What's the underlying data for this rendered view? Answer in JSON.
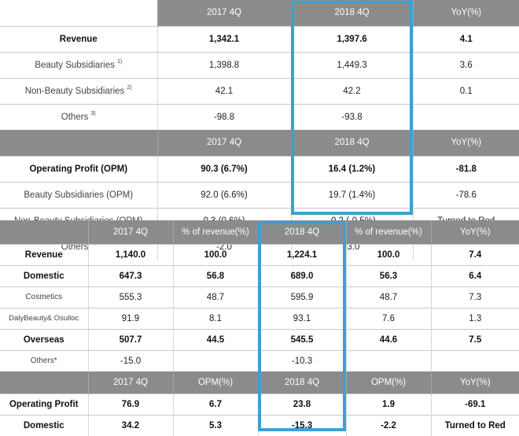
{
  "table1": {
    "header1": [
      "2017 4Q",
      "2018 4Q",
      "YoY(%)"
    ],
    "rows1": [
      {
        "label": "Revenue",
        "sup": "",
        "v2017": "1,342.1",
        "v2018": "1,397.6",
        "yoy": "4.1"
      },
      {
        "label": "Beauty Subsidiaries",
        "sup": "1)",
        "v2017": "1,398.8",
        "v2018": "1,449.3",
        "yoy": "3.6"
      },
      {
        "label": "Non-Beauty Subsidiaries",
        "sup": "2)",
        "v2017": "42.1",
        "v2018": "42.2",
        "yoy": "0.1"
      },
      {
        "label": "Others",
        "sup": "3)",
        "v2017": "-98.8",
        "v2018": "-93.8",
        "yoy": ""
      }
    ],
    "header2": [
      "2017 4Q",
      "2018 4Q",
      "YoY(%)"
    ],
    "rows2": [
      {
        "label": "Operating Profit (OPM)",
        "sup": "",
        "v2017": "90.3 (6.7%)",
        "v2018": "16.4 (1.2%)",
        "yoy": "-81.8"
      },
      {
        "label": "Beauty Subsidiaries (OPM)",
        "sup": "",
        "v2017": "92.0 (6.6%)",
        "v2018": "19.7 (1.4%)",
        "yoy": "-78.6"
      },
      {
        "label": "Non-Beauty Subsidiaries (OPM)",
        "sup": "",
        "v2017": "0.3 (0.6%)",
        "v2018": "-0.2 (-0.5%)",
        "yoy": "Turned to Red"
      },
      {
        "label": "Others",
        "sup": "3)",
        "v2017": "-2.0",
        "v2018": "-3.0",
        "yoy": ""
      }
    ]
  },
  "table2": {
    "header1": [
      "2017 4Q",
      "% of revenue(%)",
      "2018 4Q",
      "% of revenue(%)",
      "YoY(%)"
    ],
    "rows1": [
      {
        "label": "Revenue",
        "v2017": "1,140.0",
        "p2017": "100.0",
        "v2018": "1,224.1",
        "p2018": "100.0",
        "yoy": "7.4"
      },
      {
        "label": "Domestic",
        "v2017": "647.3",
        "p2017": "56.8",
        "v2018": "689.0",
        "p2018": "56.3",
        "yoy": "6.4"
      },
      {
        "label": "Cosmetics",
        "v2017": "555.3",
        "p2017": "48.7",
        "v2018": "595.9",
        "p2018": "48.7",
        "yoy": "7.3"
      },
      {
        "label": "DalyBeauty& Osulloc",
        "v2017": "91.9",
        "p2017": "8.1",
        "v2018": "93.1",
        "p2018": "7.6",
        "yoy": "1.3"
      },
      {
        "label": "Overseas",
        "v2017": "507.7",
        "p2017": "44.5",
        "v2018": "545.5",
        "p2018": "44.6",
        "yoy": "7.5"
      },
      {
        "label": "Others*",
        "v2017": "-15.0",
        "p2017": "",
        "v2018": "-10.3",
        "p2018": "",
        "yoy": ""
      }
    ],
    "header2": [
      "2017 4Q",
      "OPM(%)",
      "2018 4Q",
      "OPM(%)",
      "YoY(%)"
    ],
    "rows2": [
      {
        "label": "Operating Profit",
        "v2017": "76.9",
        "p2017": "6.7",
        "v2018": "23.8",
        "p2018": "1.9",
        "yoy": "-69.1"
      },
      {
        "label": "Domestic",
        "v2017": "34.2",
        "p2017": "5.3",
        "v2018": "-15.3",
        "p2018": "-2.2",
        "yoy": "Turned to Red"
      }
    ]
  }
}
